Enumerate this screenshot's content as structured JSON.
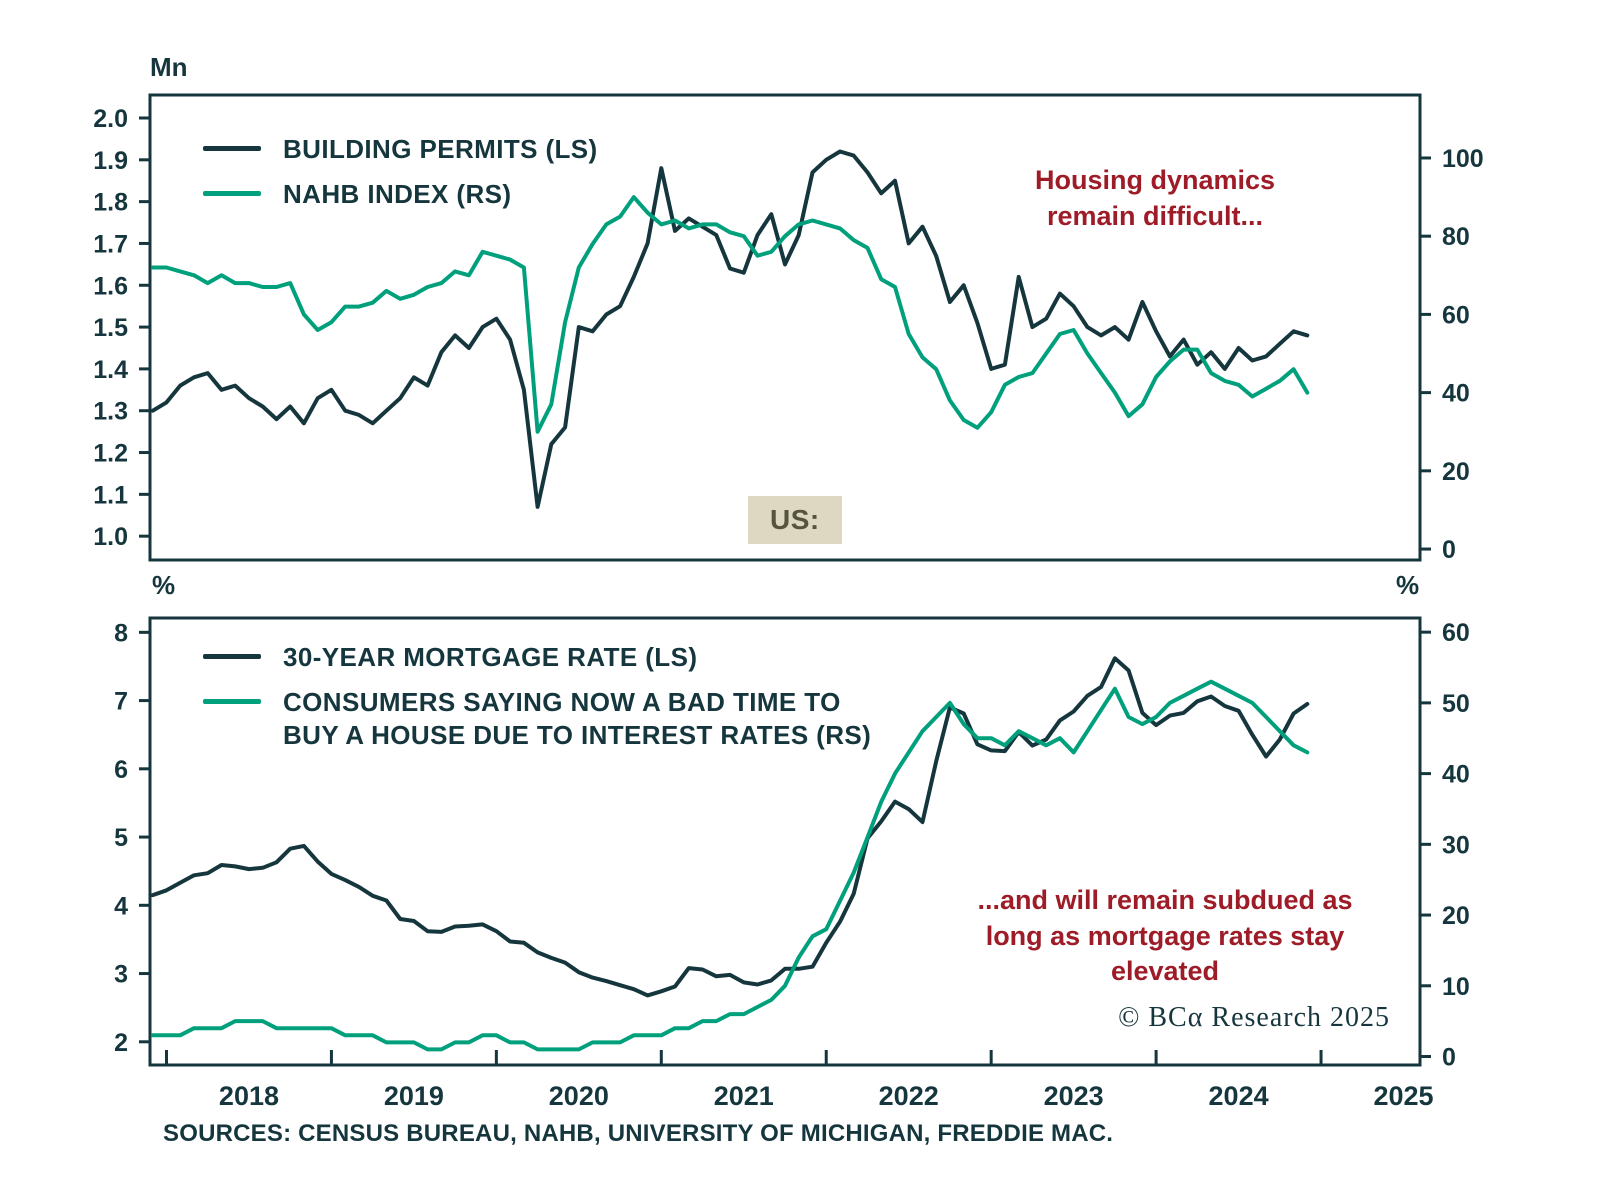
{
  "colors": {
    "dark": "#16363e",
    "green": "#00a07c",
    "red": "#9d1c27",
    "axis": "#16363e",
    "box_bg": "#ded8c2",
    "box_text": "#55543e",
    "text": "#16363e"
  },
  "region_label": "US:",
  "copyright": "© BCα Research 2025",
  "sources": "SOURCES: CENSUS BUREAU, NAHB, UNIVERSITY OF MICHIGAN, FREDDIE MAC.",
  "chart_data": [
    {
      "type": "line",
      "panel": "top",
      "unit_left": "Mn",
      "annotation": "Housing dynamics\nremain difficult...",
      "xlim": [
        2017.9,
        2025.6
      ],
      "xticks": [
        2018,
        2019,
        2020,
        2021,
        2022,
        2023,
        2024,
        2025
      ],
      "xtick_labels": [],
      "x_start": 2017.9167,
      "x_step": 0.0833333,
      "ylim_left": [
        0.943,
        2.055
      ],
      "yticks_left": [
        1.0,
        1.1,
        1.2,
        1.3,
        1.4,
        1.5,
        1.6,
        1.7,
        1.8,
        1.9,
        2.0
      ],
      "ytick_decimals_left": 1,
      "ylim_right": [
        -2.8,
        116.1
      ],
      "yticks_right": [
        0,
        20,
        40,
        60,
        80,
        100
      ],
      "ytick_decimals_right": 0,
      "series": [
        {
          "name": "BUILDING PERMITS (LS)",
          "axis": "left",
          "color": "dark",
          "values": [
            1.3,
            1.32,
            1.36,
            1.38,
            1.39,
            1.35,
            1.36,
            1.33,
            1.31,
            1.28,
            1.31,
            1.27,
            1.33,
            1.35,
            1.3,
            1.29,
            1.27,
            1.3,
            1.33,
            1.38,
            1.36,
            1.44,
            1.48,
            1.45,
            1.5,
            1.52,
            1.47,
            1.35,
            1.07,
            1.22,
            1.26,
            1.5,
            1.49,
            1.53,
            1.55,
            1.62,
            1.7,
            1.88,
            1.73,
            1.76,
            1.74,
            1.72,
            1.64,
            1.63,
            1.72,
            1.77,
            1.65,
            1.72,
            1.87,
            1.9,
            1.92,
            1.91,
            1.87,
            1.82,
            1.85,
            1.7,
            1.74,
            1.67,
            1.56,
            1.6,
            1.51,
            1.4,
            1.41,
            1.62,
            1.5,
            1.52,
            1.58,
            1.55,
            1.5,
            1.48,
            1.5,
            1.47,
            1.56,
            1.49,
            1.43,
            1.47,
            1.41,
            1.44,
            1.4,
            1.45,
            1.42,
            1.43,
            1.46,
            1.49,
            1.48
          ]
        },
        {
          "name": "NAHB INDEX (RS)",
          "axis": "right",
          "color": "green",
          "values": [
            72,
            72,
            71,
            70,
            68,
            70,
            68,
            68,
            67,
            67,
            68,
            60,
            56,
            58,
            62,
            62,
            63,
            66,
            64,
            65,
            67,
            68,
            71,
            70,
            76,
            75,
            74,
            72,
            30,
            37,
            58,
            72,
            78,
            83,
            85,
            90,
            86,
            83,
            84,
            82,
            83,
            83,
            81,
            80,
            75,
            76,
            80,
            83,
            84,
            83,
            82,
            79,
            77,
            69,
            67,
            55,
            49,
            46,
            38,
            33,
            31,
            35,
            42,
            44,
            45,
            50,
            55,
            56,
            50,
            45,
            40,
            34,
            37,
            44,
            48,
            51,
            51,
            45,
            43,
            42,
            39,
            41,
            43,
            46,
            40
          ]
        }
      ]
    },
    {
      "type": "line",
      "panel": "bottom",
      "unit_left": "%",
      "unit_right": "%",
      "annotation": "...and will remain subdued as\nlong as mortgage rates stay\nelevated",
      "xlim": [
        2017.9,
        2025.6
      ],
      "xticks": [
        2018,
        2019,
        2020,
        2021,
        2022,
        2023,
        2024,
        2025
      ],
      "xtick_labels": [
        {
          "x": 2018.5,
          "label": "2018"
        },
        {
          "x": 2019.5,
          "label": "2019"
        },
        {
          "x": 2020.5,
          "label": "2020"
        },
        {
          "x": 2021.5,
          "label": "2021"
        },
        {
          "x": 2022.5,
          "label": "2022"
        },
        {
          "x": 2023.5,
          "label": "2023"
        },
        {
          "x": 2024.5,
          "label": "2024"
        },
        {
          "x": 2025.5,
          "label": "2025"
        }
      ],
      "x_start": 2017.9167,
      "x_step": 0.0833333,
      "ylim_left": [
        1.66,
        8.21
      ],
      "yticks_left": [
        2,
        3,
        4,
        5,
        6,
        7,
        8
      ],
      "ytick_decimals_left": 0,
      "ylim_right": [
        -1.2,
        62.0
      ],
      "yticks_right": [
        0,
        10,
        20,
        30,
        40,
        50,
        60
      ],
      "ytick_decimals_right": 0,
      "series": [
        {
          "name": "30-YEAR MORTGAGE RATE (LS)",
          "axis": "left",
          "color": "dark",
          "values": [
            4.15,
            4.22,
            4.33,
            4.44,
            4.47,
            4.59,
            4.57,
            4.53,
            4.55,
            4.63,
            4.83,
            4.87,
            4.64,
            4.46,
            4.37,
            4.27,
            4.14,
            4.07,
            3.8,
            3.77,
            3.62,
            3.61,
            3.69,
            3.7,
            3.72,
            3.62,
            3.47,
            3.45,
            3.31,
            3.23,
            3.16,
            3.02,
            2.94,
            2.89,
            2.83,
            2.77,
            2.68,
            2.74,
            2.81,
            3.08,
            3.06,
            2.96,
            2.98,
            2.87,
            2.84,
            2.9,
            3.07,
            3.07,
            3.1,
            3.45,
            3.76,
            4.17,
            4.98,
            5.23,
            5.52,
            5.41,
            5.22,
            6.11,
            6.9,
            6.81,
            6.36,
            6.27,
            6.26,
            6.54,
            6.34,
            6.43,
            6.71,
            6.84,
            7.07,
            7.2,
            7.62,
            7.44,
            6.82,
            6.64,
            6.78,
            6.82,
            6.99,
            7.06,
            6.92,
            6.85,
            6.5,
            6.18,
            6.43,
            6.81,
            6.95
          ]
        },
        {
          "name": "CONSUMERS SAYING NOW A BAD TIME TO\nBUY A HOUSE DUE TO INTEREST RATES (RS)",
          "axis": "right",
          "color": "green",
          "values": [
            3,
            3,
            3,
            4,
            4,
            4,
            5,
            5,
            5,
            4,
            4,
            4,
            4,
            4,
            3,
            3,
            3,
            2,
            2,
            2,
            1,
            1,
            2,
            2,
            3,
            3,
            2,
            2,
            1,
            1,
            1,
            1,
            2,
            2,
            2,
            3,
            3,
            3,
            4,
            4,
            5,
            5,
            6,
            6,
            7,
            8,
            10,
            14,
            17,
            18,
            22,
            26,
            31,
            36,
            40,
            43,
            46,
            48,
            50,
            47,
            45,
            45,
            44,
            46,
            45,
            44,
            45,
            43,
            46,
            49,
            52,
            48,
            47,
            48,
            50,
            51,
            52,
            53,
            52,
            51,
            50,
            48,
            46,
            44,
            43
          ]
        }
      ]
    }
  ]
}
